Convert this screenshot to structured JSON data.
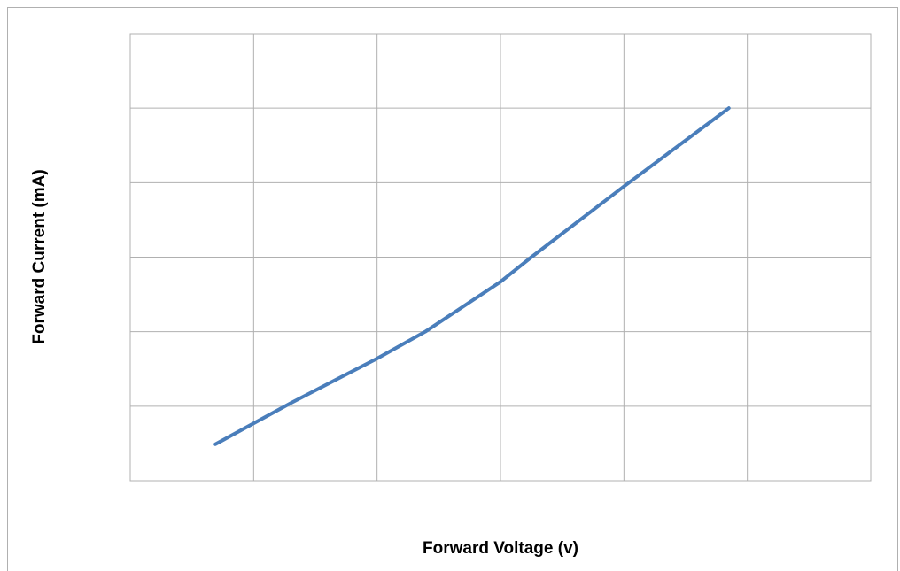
{
  "chart_data": {
    "type": "line",
    "x_label": "Forward Voltage (v)",
    "y_label": "Forward Current  (mA)",
    "x": [
      0.69,
      1.31,
      2.0,
      2.39,
      3.0,
      3.25,
      4.0,
      4.85
    ],
    "series": [
      {
        "name": "Forward Current",
        "color": "#4a7ebb",
        "values": [
          0.49,
          1.05,
          1.64,
          2.0,
          2.67,
          3.0,
          3.95,
          5.0
        ]
      }
    ],
    "xlim": [
      0,
      6
    ],
    "ylim": [
      0,
      6
    ],
    "xticks": [
      0,
      1,
      2,
      3,
      4,
      5,
      6
    ],
    "yticks": [
      0,
      1,
      2,
      3,
      4,
      5,
      6
    ],
    "grid": true
  }
}
